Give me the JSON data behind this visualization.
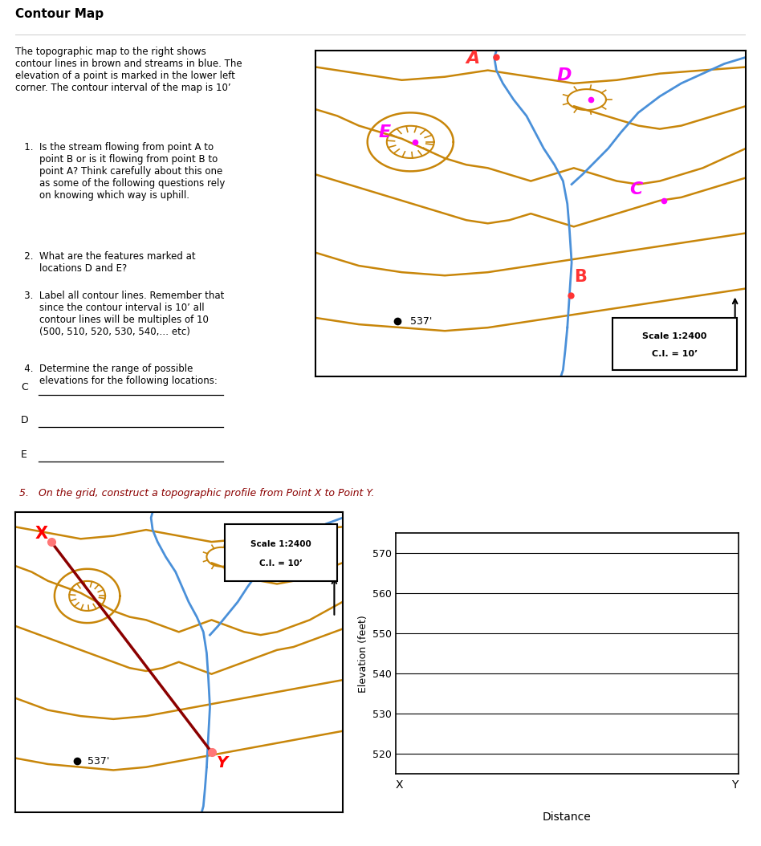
{
  "title": "Contour Map",
  "bg_color": "#ffffff",
  "contour_color": "#c8860a",
  "stream_color": "#4a90d9",
  "magenta": "#ff00ff",
  "red_pt": "#ff3333",
  "dark_red": "#8B0000",
  "q5_text": "5.   On the grid, construct a topographic profile from Point X to Point Y.",
  "profile_yticks": [
    520,
    530,
    540,
    550,
    560,
    570
  ],
  "profile_ylabel": "Elevation (feet)",
  "profile_xlabel": "Distance"
}
